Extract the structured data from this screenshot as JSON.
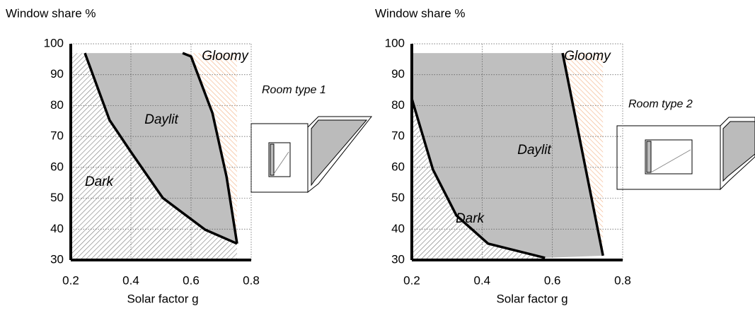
{
  "chart_data": [
    {
      "type": "line",
      "y_label": "Window share %",
      "x_label": "Solar factor g",
      "annotation": "Room type 1",
      "regions": [
        "Dark",
        "Daylit",
        "Gloomy"
      ],
      "xlim": [
        0.2,
        0.8
      ],
      "xticks": [
        0.2,
        0.4,
        0.6,
        0.8
      ],
      "ylim": [
        30,
        100
      ],
      "yticks": [
        30,
        40,
        50,
        60,
        70,
        80,
        90,
        100
      ],
      "grid": true,
      "series": [
        {
          "x": [
            0.247,
            0.329,
            0.4,
            0.506,
            0.647,
            0.753
          ],
          "values": [
            97,
            75.3,
            65,
            50.1,
            39.8,
            35.3
          ],
          "color": "#000000"
        },
        {
          "x": [
            0.572,
            0.6,
            0.671,
            0.718,
            0.753
          ],
          "values": [
            97,
            95.9,
            77.6,
            57,
            35.3
          ],
          "color": "#000000"
        }
      ]
    },
    {
      "type": "line",
      "y_label": "Window share %",
      "x_label": "Solar factor g",
      "annotation": "Room type 2",
      "regions": [
        "Dark",
        "Daylit",
        "Gloomy"
      ],
      "xlim": [
        0.2,
        0.8
      ],
      "xticks": [
        0.2,
        0.4,
        0.6,
        0.8
      ],
      "ylim": [
        30,
        100
      ],
      "yticks": [
        30,
        40,
        50,
        60,
        70,
        80,
        90,
        100
      ],
      "grid": true,
      "series": [
        {
          "x": [
            0.2,
            0.26,
            0.327,
            0.417,
            0.579
          ],
          "values": [
            82.2,
            59.3,
            44.4,
            35.3,
            30.7
          ],
          "color": "#000000"
        },
        {
          "x": [
            0.629,
            0.744
          ],
          "values": [
            97,
            31.4
          ],
          "color": "#000000"
        }
      ]
    }
  ]
}
